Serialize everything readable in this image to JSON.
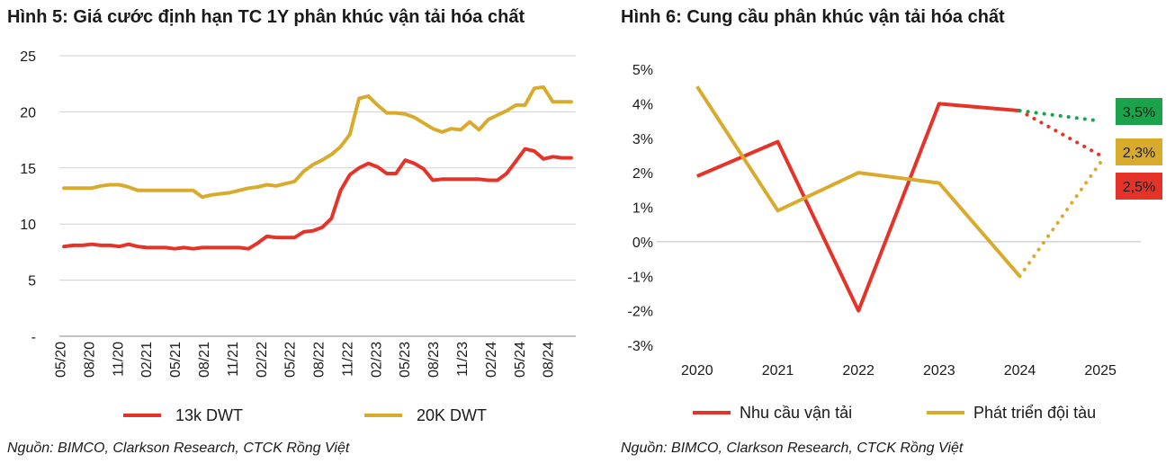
{
  "chart_data": [
    {
      "type": "line",
      "title": "Hình 5: Giá cước định hạn TC 1Y phân khúc vận tải hóa chất",
      "xlabel": "",
      "ylabel": "",
      "ylim": [
        0,
        25
      ],
      "yticks": [
        "-",
        "5",
        "10",
        "15",
        "20",
        "25"
      ],
      "xtick_labels": [
        "05/20",
        "08/20",
        "11/20",
        "02/21",
        "05/21",
        "08/21",
        "11/21",
        "02/22",
        "05/22",
        "08/22",
        "11/22",
        "02/23",
        "05/23",
        "08/23",
        "11/23",
        "02/24",
        "05/24",
        "08/24"
      ],
      "grid": true,
      "legend_position": "bottom",
      "series": [
        {
          "name": "13k DWT",
          "color": "#e5332a",
          "values": [
            8.0,
            8.1,
            8.1,
            8.2,
            8.1,
            8.1,
            8.0,
            8.2,
            8.0,
            7.9,
            7.9,
            7.9,
            7.8,
            7.9,
            7.8,
            7.9,
            7.9,
            7.9,
            7.9,
            7.9,
            7.8,
            8.3,
            8.9,
            8.8,
            8.8,
            8.8,
            9.3,
            9.4,
            9.7,
            10.5,
            13.0,
            14.4,
            15.0,
            15.4,
            15.1,
            14.5,
            14.5,
            15.7,
            15.4,
            14.9,
            13.9,
            14.0,
            14.0,
            14.0,
            14.0,
            14.0,
            13.9,
            13.9,
            14.5,
            15.6,
            16.7,
            16.5,
            15.8,
            16.0,
            15.9,
            15.9
          ]
        },
        {
          "name": "20K DWT",
          "color": "#d9ab2c",
          "values": [
            13.2,
            13.2,
            13.2,
            13.2,
            13.4,
            13.5,
            13.5,
            13.3,
            13.0,
            13.0,
            13.0,
            13.0,
            13.0,
            13.0,
            13.0,
            12.4,
            12.6,
            12.7,
            12.8,
            13.0,
            13.2,
            13.3,
            13.5,
            13.4,
            13.6,
            13.8,
            14.7,
            15.3,
            15.7,
            16.2,
            16.9,
            18.0,
            21.2,
            21.4,
            20.6,
            19.9,
            19.9,
            19.8,
            19.5,
            19.0,
            18.5,
            18.2,
            18.5,
            18.4,
            19.1,
            18.4,
            19.3,
            19.7,
            20.1,
            20.6,
            20.6,
            22.1,
            22.2,
            20.9,
            20.9,
            20.9
          ]
        }
      ],
      "source": "Nguồn: BIMCO, Clarkson Research, CTCK Rồng Việt"
    },
    {
      "type": "line",
      "title": "Hình 6: Cung cầu phân khúc vận tải hóa chất",
      "xlabel": "",
      "ylabel": "",
      "ylim": [
        -3,
        5
      ],
      "yticks": [
        "-3%",
        "-2%",
        "-1%",
        "0%",
        "1%",
        "2%",
        "3%",
        "4%",
        "5%"
      ],
      "categories": [
        "2020",
        "2021",
        "2022",
        "2023",
        "2024",
        "2025"
      ],
      "grid": false,
      "legend_position": "bottom",
      "series": [
        {
          "name": "Nhu cầu vận tải",
          "color": "#e5332a",
          "values": [
            1.9,
            2.9,
            -2.0,
            4.0,
            3.8,
            2.5
          ],
          "forecast_from_index": 4
        },
        {
          "name": "Phát triển đội tàu",
          "color": "#d9ab2c",
          "values": [
            4.5,
            0.9,
            2.0,
            1.7,
            -1.0,
            2.3
          ],
          "forecast_from_index": 4
        },
        {
          "name": "",
          "color": "#1aa34a",
          "values": [
            null,
            null,
            null,
            null,
            3.8,
            3.5
          ],
          "forecast_from_index": 4
        }
      ],
      "annotations": [
        {
          "text": "3,5%",
          "bg": "#1aa34a",
          "value": 3.5
        },
        {
          "text": "2,3%",
          "bg": "#d9ab2c",
          "value": 2.3
        },
        {
          "text": "2,5%",
          "bg": "#e5332a",
          "value": 2.5
        }
      ],
      "source": "Nguồn: BIMCO, Clarkson Research, CTCK Rồng Việt"
    }
  ]
}
